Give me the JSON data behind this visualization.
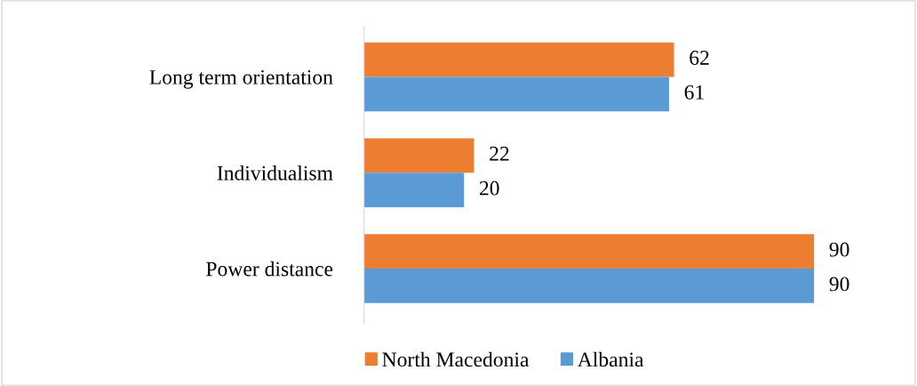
{
  "chart_data": {
    "type": "bar",
    "orientation": "horizontal",
    "categories": [
      "Long term orientation",
      "Individualism",
      "Power distance"
    ],
    "series": [
      {
        "name": "North Macedonia",
        "color": "#ed7d31",
        "values": [
          62,
          22,
          90
        ]
      },
      {
        "name": "Albania",
        "color": "#5b9bd5",
        "values": [
          61,
          20,
          90
        ]
      }
    ],
    "data_labels": true,
    "grid": false,
    "legend": "bottom"
  }
}
